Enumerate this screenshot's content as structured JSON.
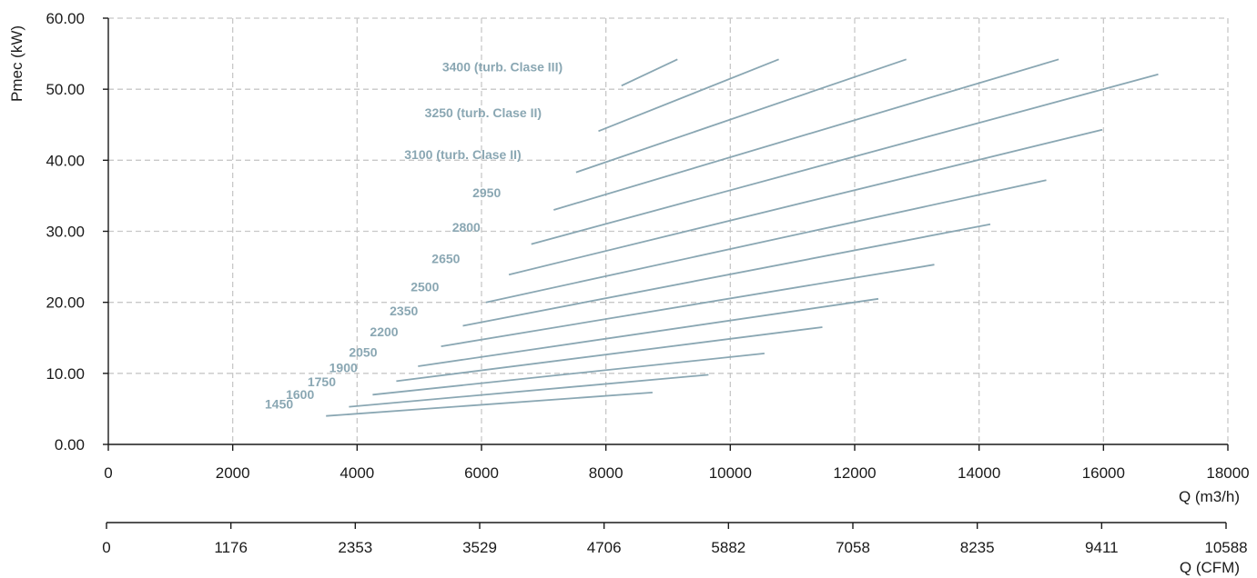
{
  "chart_data": {
    "type": "line",
    "ylabel": "Pmec (kW)",
    "xlabel": "Q (m3/h)",
    "x2label": "Q (CFM)",
    "xlim": [
      0,
      18000
    ],
    "ylim": [
      0,
      60
    ],
    "grid": true,
    "line_color": "#8aa7b3",
    "y_ticks": [
      "0.00",
      "10.00",
      "20.00",
      "30.00",
      "40.00",
      "50.00",
      "60.00"
    ],
    "x_ticks": [
      "0",
      "2000",
      "4000",
      "6000",
      "8000",
      "10000",
      "12000",
      "14000",
      "16000",
      "18000"
    ],
    "x2_ticks": [
      "0",
      "1176",
      "2353",
      "3529",
      "4706",
      "5882",
      "7058",
      "8235",
      "9411",
      "10588"
    ],
    "series": [
      {
        "name": "1450",
        "x": [
          3500,
          8750
        ],
        "y": [
          4.0,
          7.3
        ]
      },
      {
        "name": "1600",
        "x": [
          3870,
          9650
        ],
        "y": [
          5.3,
          9.8
        ]
      },
      {
        "name": "1750",
        "x": [
          4250,
          10550
        ],
        "y": [
          7.0,
          12.8
        ]
      },
      {
        "name": "1900",
        "x": [
          4630,
          11480
        ],
        "y": [
          8.9,
          16.5
        ]
      },
      {
        "name": "2050",
        "x": [
          4980,
          12380
        ],
        "y": [
          11.0,
          20.5
        ]
      },
      {
        "name": "2200",
        "x": [
          5350,
          13280
        ],
        "y": [
          13.8,
          25.3
        ]
      },
      {
        "name": "2350",
        "x": [
          5700,
          14180
        ],
        "y": [
          16.7,
          31.0
        ]
      },
      {
        "name": "2500",
        "x": [
          6070,
          15080
        ],
        "y": [
          20.0,
          37.2
        ]
      },
      {
        "name": "2650",
        "x": [
          6440,
          15980
        ],
        "y": [
          23.9,
          44.3
        ]
      },
      {
        "name": "2800",
        "x": [
          6800,
          16880
        ],
        "y": [
          28.2,
          52.1
        ]
      },
      {
        "name": "2950",
        "x": [
          7160,
          15280
        ],
        "y": [
          33.0,
          54.2
        ]
      },
      {
        "name": "3100 (turb. Clase II)",
        "x": [
          7520,
          12830
        ],
        "y": [
          38.3,
          54.2
        ]
      },
      {
        "name": "3250 (turb. Clase II)",
        "x": [
          7880,
          10780
        ],
        "y": [
          44.1,
          54.2
        ]
      },
      {
        "name": "3400 (turb. Clase III)",
        "x": [
          8250,
          9150
        ],
        "y": [
          50.5,
          54.2
        ]
      }
    ]
  }
}
